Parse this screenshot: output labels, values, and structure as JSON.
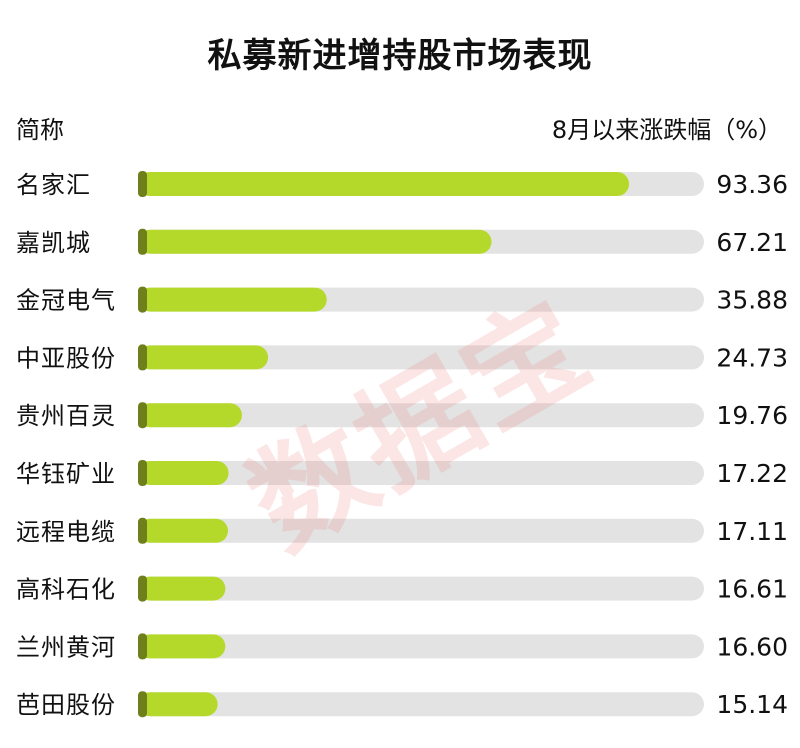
{
  "title": "私募新进增持股市场表现",
  "header": {
    "left_label": "简称",
    "right_label": "8月以来涨跌幅（%）"
  },
  "watermark": "数据宝",
  "colors": {
    "bar_fill": "#b5d92a",
    "bar_cap": "#6f7f1c",
    "track": "#e3e3e3"
  },
  "chart_data": {
    "type": "bar",
    "orientation": "horizontal",
    "title": "私募新进增持股市场表现",
    "xlabel": "8月以来涨跌幅（%）",
    "ylabel": "简称",
    "categories": [
      "名家汇",
      "嘉凯城",
      "金冠电气",
      "中亚股份",
      "贵州百灵",
      "华钰矿业",
      "远程电缆",
      "高科石化",
      "兰州黄河",
      "芭田股份"
    ],
    "values": [
      93.36,
      67.21,
      35.88,
      24.73,
      19.76,
      17.22,
      17.11,
      16.61,
      16.6,
      15.14
    ],
    "value_labels": [
      "93.36",
      "67.21",
      "35.88",
      "24.73",
      "19.76",
      "17.22",
      "17.11",
      "16.61",
      "16.60",
      "15.14"
    ],
    "xlim": [
      0,
      100
    ],
    "grid": false,
    "legend": "none"
  }
}
